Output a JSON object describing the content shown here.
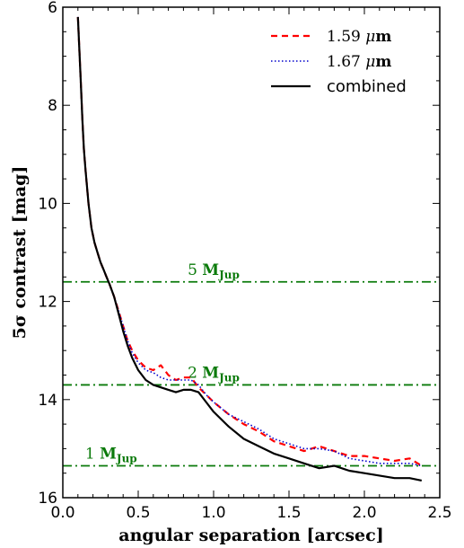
{
  "chart_data": {
    "type": "line",
    "xlabel": "angular separation [arcsec]",
    "ylabel": "5σ contrast [mag]",
    "xlim": [
      0.0,
      2.5
    ],
    "ylim": [
      16,
      6
    ],
    "y_inverted": true,
    "x_ticks": [
      "0.0",
      "0.5",
      "1.0",
      "1.5",
      "2.0",
      "2.5"
    ],
    "y_ticks": [
      "6",
      "8",
      "10",
      "12",
      "14",
      "16"
    ],
    "legend_position": "top-right",
    "series": [
      {
        "name": "1.59 μm",
        "style": "dashed",
        "color": "#ff0000",
        "x": [
          0.1,
          0.11,
          0.12,
          0.13,
          0.14,
          0.15,
          0.17,
          0.19,
          0.21,
          0.23,
          0.25,
          0.27,
          0.29,
          0.31,
          0.34,
          0.37,
          0.4,
          0.43,
          0.46,
          0.5,
          0.55,
          0.6,
          0.65,
          0.7,
          0.75,
          0.8,
          0.85,
          0.9,
          0.95,
          1.0,
          1.1,
          1.2,
          1.3,
          1.4,
          1.5,
          1.6,
          1.7,
          1.8,
          1.9,
          2.0,
          2.1,
          2.2,
          2.3,
          2.38
        ],
        "y": [
          6.2,
          6.9,
          7.6,
          8.3,
          8.9,
          9.3,
          10.0,
          10.5,
          10.8,
          11.0,
          11.2,
          11.35,
          11.5,
          11.65,
          11.9,
          12.2,
          12.5,
          12.8,
          13.0,
          13.2,
          13.35,
          13.4,
          13.3,
          13.5,
          13.6,
          13.55,
          13.55,
          13.75,
          13.9,
          14.05,
          14.3,
          14.5,
          14.65,
          14.85,
          14.95,
          15.05,
          14.95,
          15.05,
          15.15,
          15.15,
          15.2,
          15.25,
          15.2,
          15.35
        ]
      },
      {
        "name": "1.67 μm",
        "style": "dotted",
        "color": "#0000cc",
        "x": [
          0.1,
          0.11,
          0.12,
          0.13,
          0.14,
          0.15,
          0.17,
          0.19,
          0.21,
          0.23,
          0.25,
          0.27,
          0.29,
          0.31,
          0.34,
          0.37,
          0.4,
          0.43,
          0.46,
          0.5,
          0.55,
          0.6,
          0.65,
          0.7,
          0.75,
          0.8,
          0.85,
          0.9,
          0.95,
          1.0,
          1.1,
          1.2,
          1.3,
          1.4,
          1.5,
          1.6,
          1.7,
          1.8,
          1.9,
          2.0,
          2.1,
          2.2,
          2.3,
          2.38
        ],
        "y": [
          6.2,
          6.9,
          7.6,
          8.3,
          8.9,
          9.3,
          10.0,
          10.5,
          10.8,
          11.0,
          11.2,
          11.35,
          11.5,
          11.65,
          11.9,
          12.2,
          12.5,
          12.8,
          13.05,
          13.25,
          13.4,
          13.45,
          13.55,
          13.6,
          13.6,
          13.6,
          13.6,
          13.7,
          13.9,
          14.05,
          14.3,
          14.45,
          14.6,
          14.8,
          14.9,
          15.0,
          15.0,
          15.05,
          15.2,
          15.25,
          15.3,
          15.3,
          15.3,
          15.35
        ]
      },
      {
        "name": "combined",
        "style": "solid",
        "color": "#000000",
        "x": [
          0.1,
          0.11,
          0.12,
          0.13,
          0.14,
          0.15,
          0.17,
          0.19,
          0.21,
          0.23,
          0.25,
          0.27,
          0.29,
          0.31,
          0.34,
          0.37,
          0.4,
          0.43,
          0.46,
          0.5,
          0.55,
          0.6,
          0.65,
          0.7,
          0.75,
          0.8,
          0.85,
          0.9,
          0.95,
          1.0,
          1.1,
          1.2,
          1.3,
          1.4,
          1.5,
          1.6,
          1.7,
          1.8,
          1.9,
          2.0,
          2.1,
          2.2,
          2.3,
          2.38
        ],
        "y": [
          6.2,
          6.9,
          7.6,
          8.3,
          8.9,
          9.3,
          10.0,
          10.5,
          10.8,
          11.0,
          11.2,
          11.35,
          11.5,
          11.65,
          11.9,
          12.25,
          12.6,
          12.9,
          13.15,
          13.4,
          13.6,
          13.7,
          13.75,
          13.8,
          13.85,
          13.8,
          13.8,
          13.85,
          14.05,
          14.25,
          14.55,
          14.8,
          14.95,
          15.1,
          15.2,
          15.3,
          15.4,
          15.35,
          15.45,
          15.5,
          15.55,
          15.6,
          15.6,
          15.65
        ]
      }
    ],
    "reference_lines": [
      {
        "y": 11.6,
        "label": "5",
        "color": "#0a7a0a",
        "style": "dashdot"
      },
      {
        "y": 13.7,
        "label": "2",
        "color": "#0a7a0a",
        "style": "dashdot"
      },
      {
        "y": 15.35,
        "label": "1",
        "color": "#0a7a0a",
        "style": "dashdot"
      }
    ],
    "reference_line_unit": "M",
    "reference_line_unit_subscript": "Jup"
  }
}
